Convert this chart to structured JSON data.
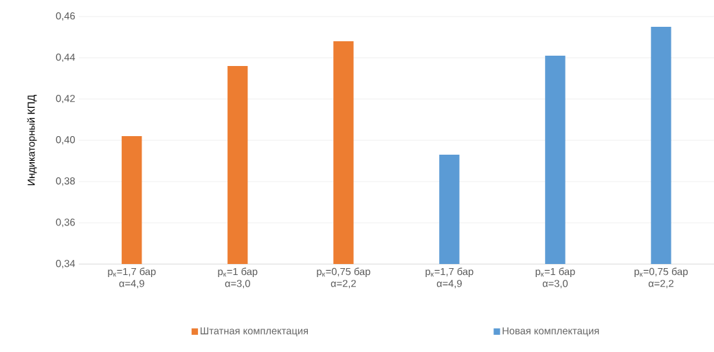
{
  "chart_data": {
    "type": "bar",
    "ylabel": "Индикаторный КПД",
    "categories": [
      "p$_{к}$=1,7 бар α=4,9",
      "p$_{к}$=1 бар α=3,0",
      "p$_{к}$=0,75 бар α=2,2",
      "p$_{к}$=1,7 бар α=4,9",
      "p$_{к}$=1 бар α=3,0",
      "p$_{к}$=0,75 бар α=2,2"
    ],
    "series": [
      {
        "name": "Штатная комплектация",
        "color": "#ed7d31",
        "values": [
          0.402,
          0.436,
          0.448,
          null,
          null,
          null
        ]
      },
      {
        "name": "Новая комплектация",
        "color": "#5b9bd5",
        "values": [
          null,
          null,
          null,
          0.393,
          0.441,
          0.455
        ]
      }
    ],
    "ylim": [
      0.34,
      0.46
    ],
    "yticks": [
      {
        "value": 0.34,
        "label": "0,34"
      },
      {
        "value": 0.36,
        "label": "0,36"
      },
      {
        "value": 0.38,
        "label": "0,38"
      },
      {
        "value": 0.4,
        "label": "0,40"
      },
      {
        "value": 0.42,
        "label": "0,42"
      },
      {
        "value": 0.44,
        "label": "0,44"
      },
      {
        "value": 0.46,
        "label": "0,46"
      }
    ],
    "grid": "y",
    "legend": "bottom"
  }
}
